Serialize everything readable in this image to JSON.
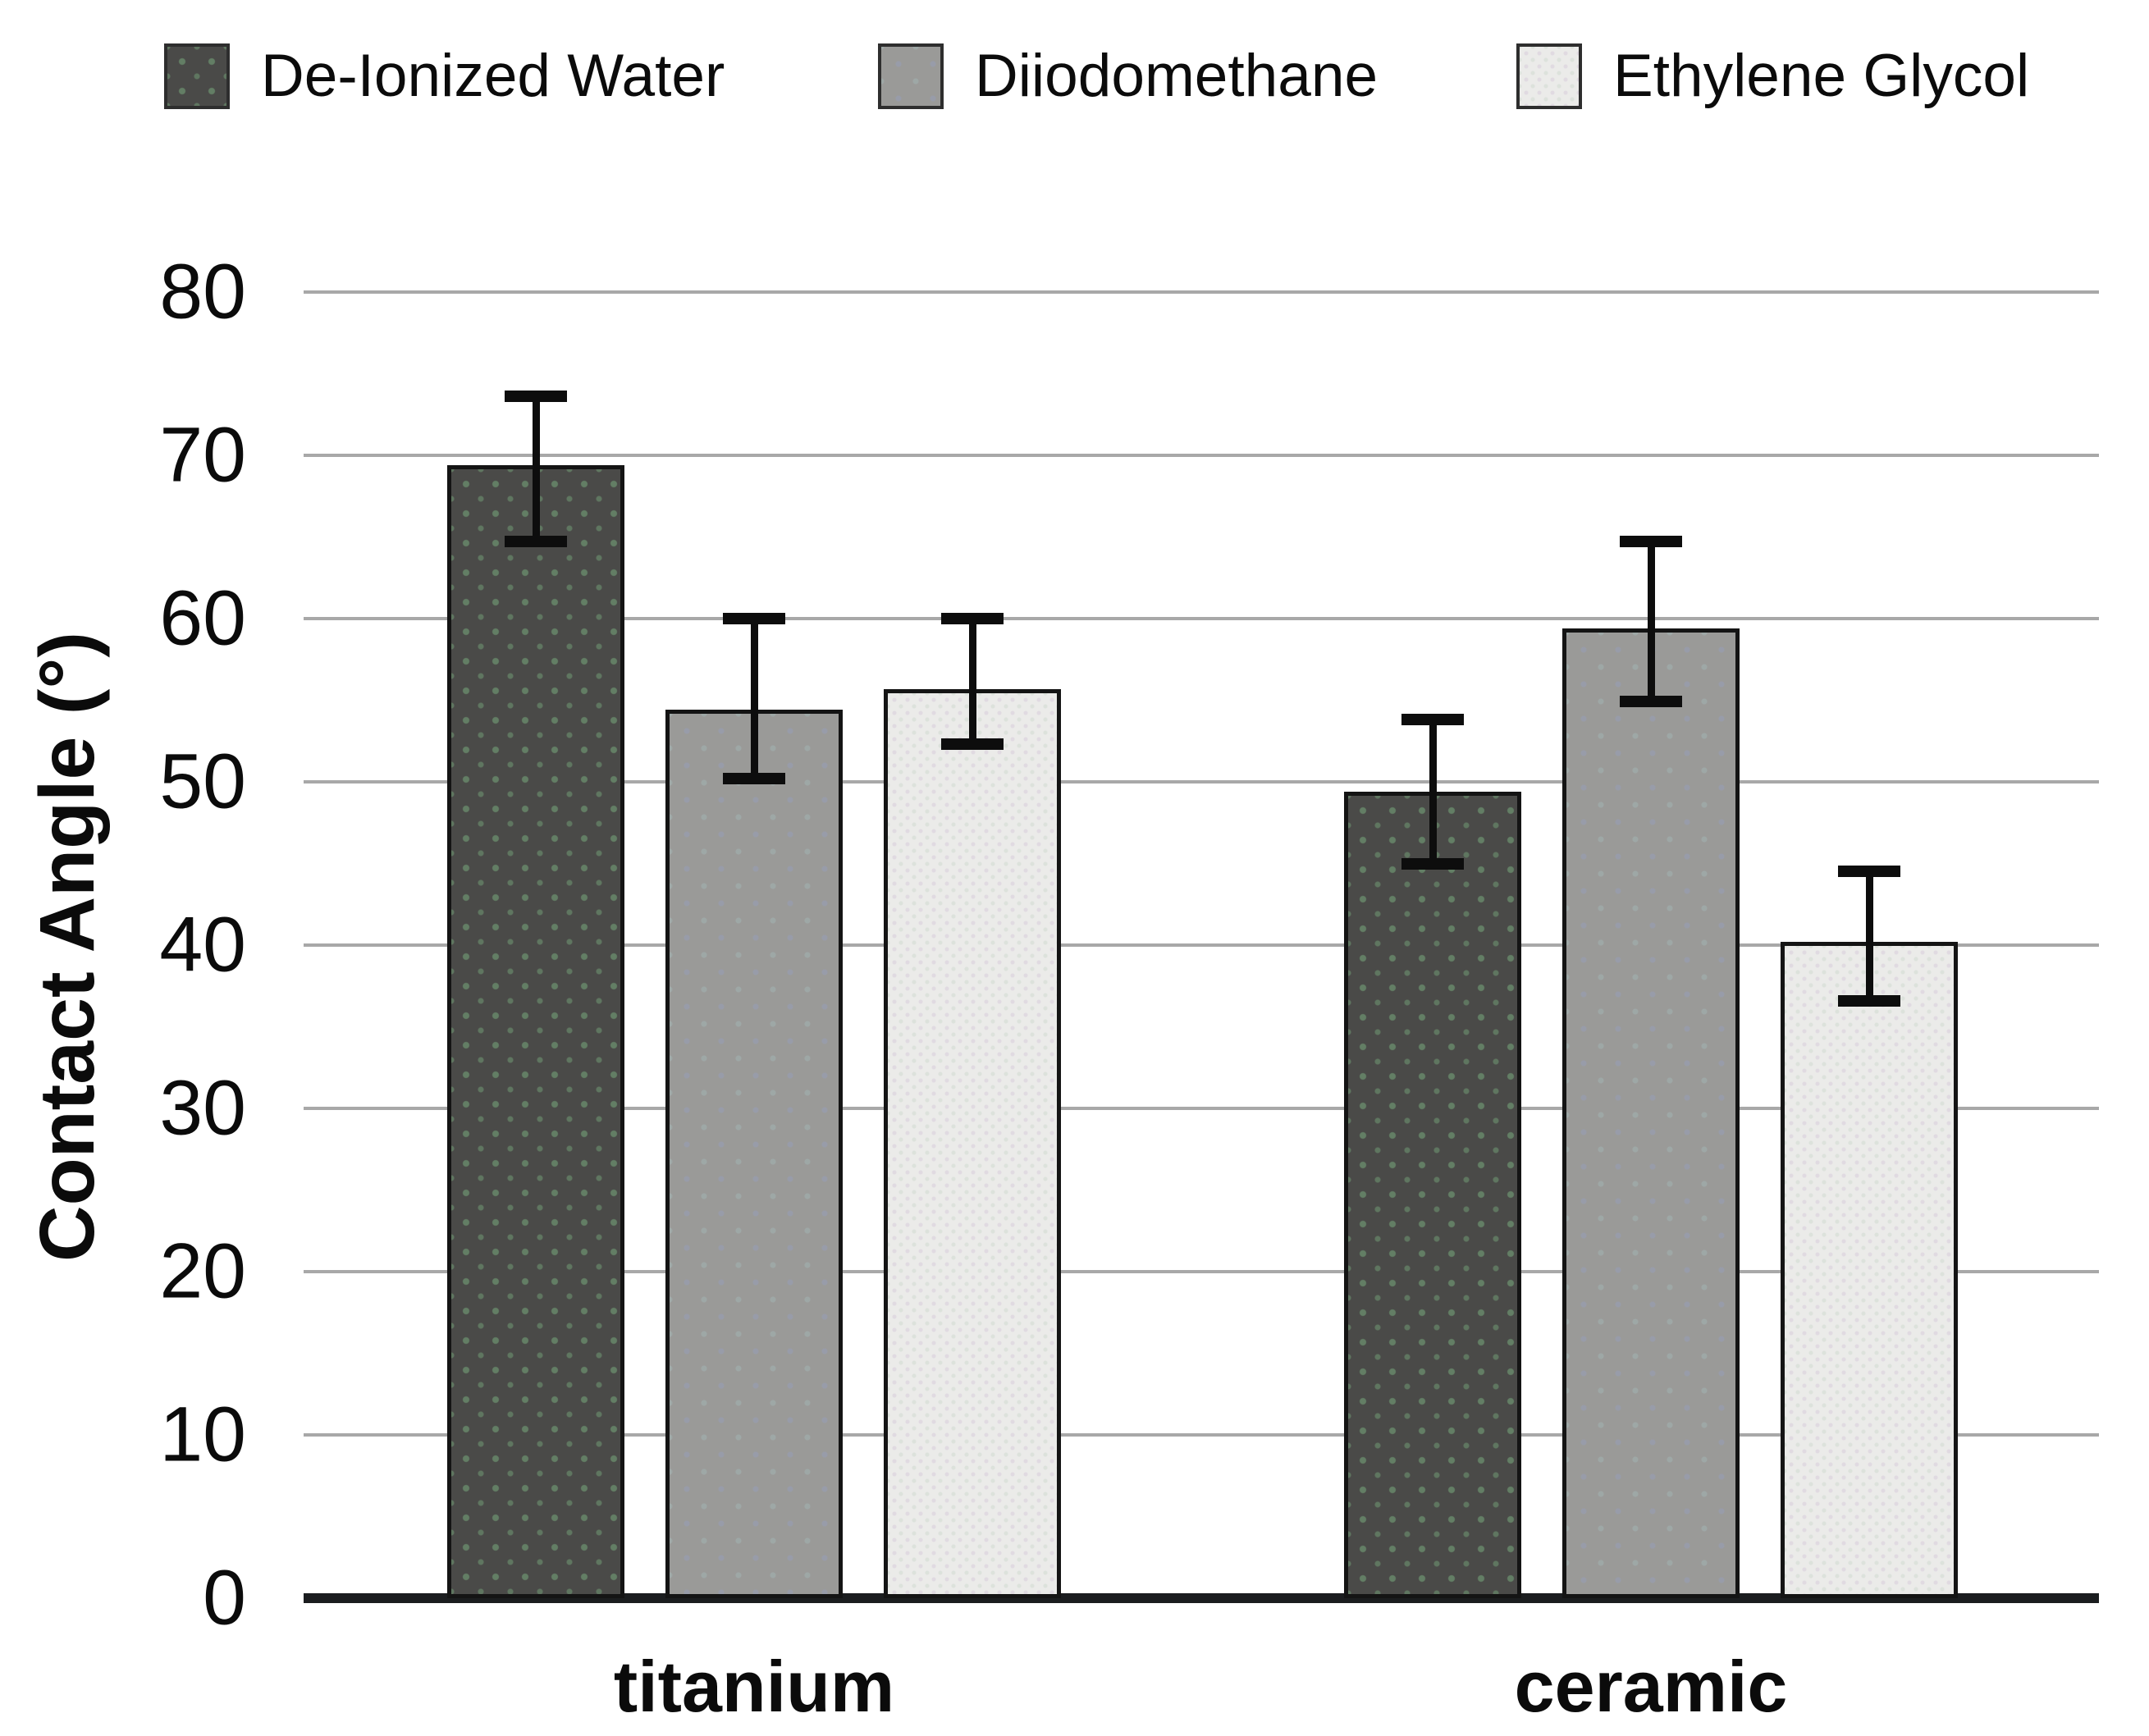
{
  "chart_data": {
    "type": "bar",
    "title": "",
    "categories": [
      "titanium",
      "ceramic"
    ],
    "series": [
      {
        "name": "De-Ionized Water",
        "color": "#4a4a48",
        "values": [
          69.4,
          49.4
        ],
        "err_plus": [
          4.2,
          4.4
        ],
        "err_minus": [
          4.7,
          4.4
        ]
      },
      {
        "name": "Diiodomethane",
        "color": "#9a9a98",
        "values": [
          54.4,
          59.4
        ],
        "err_plus": [
          5.6,
          5.3
        ],
        "err_minus": [
          4.2,
          4.5
        ]
      },
      {
        "name": "Ethylene Glycol",
        "color": "#ebebe9",
        "values": [
          55.7,
          40.2
        ],
        "err_plus": [
          4.3,
          4.3
        ],
        "err_minus": [
          3.4,
          3.6
        ]
      }
    ],
    "xlabel": "",
    "ylabel": "Contact Angle (°)",
    "ylim": [
      0,
      80
    ],
    "yticks": [
      0,
      10,
      20,
      30,
      40,
      50,
      60,
      70,
      80
    ],
    "grid": true,
    "error_bars": true,
    "legend_position": "top",
    "colors": {
      "gridline": "#a8a8a8",
      "baseline": "#1b1d1f",
      "error_bar": "#0d0d0d",
      "text": "#0b0b0b",
      "background": "#ffffff"
    }
  }
}
